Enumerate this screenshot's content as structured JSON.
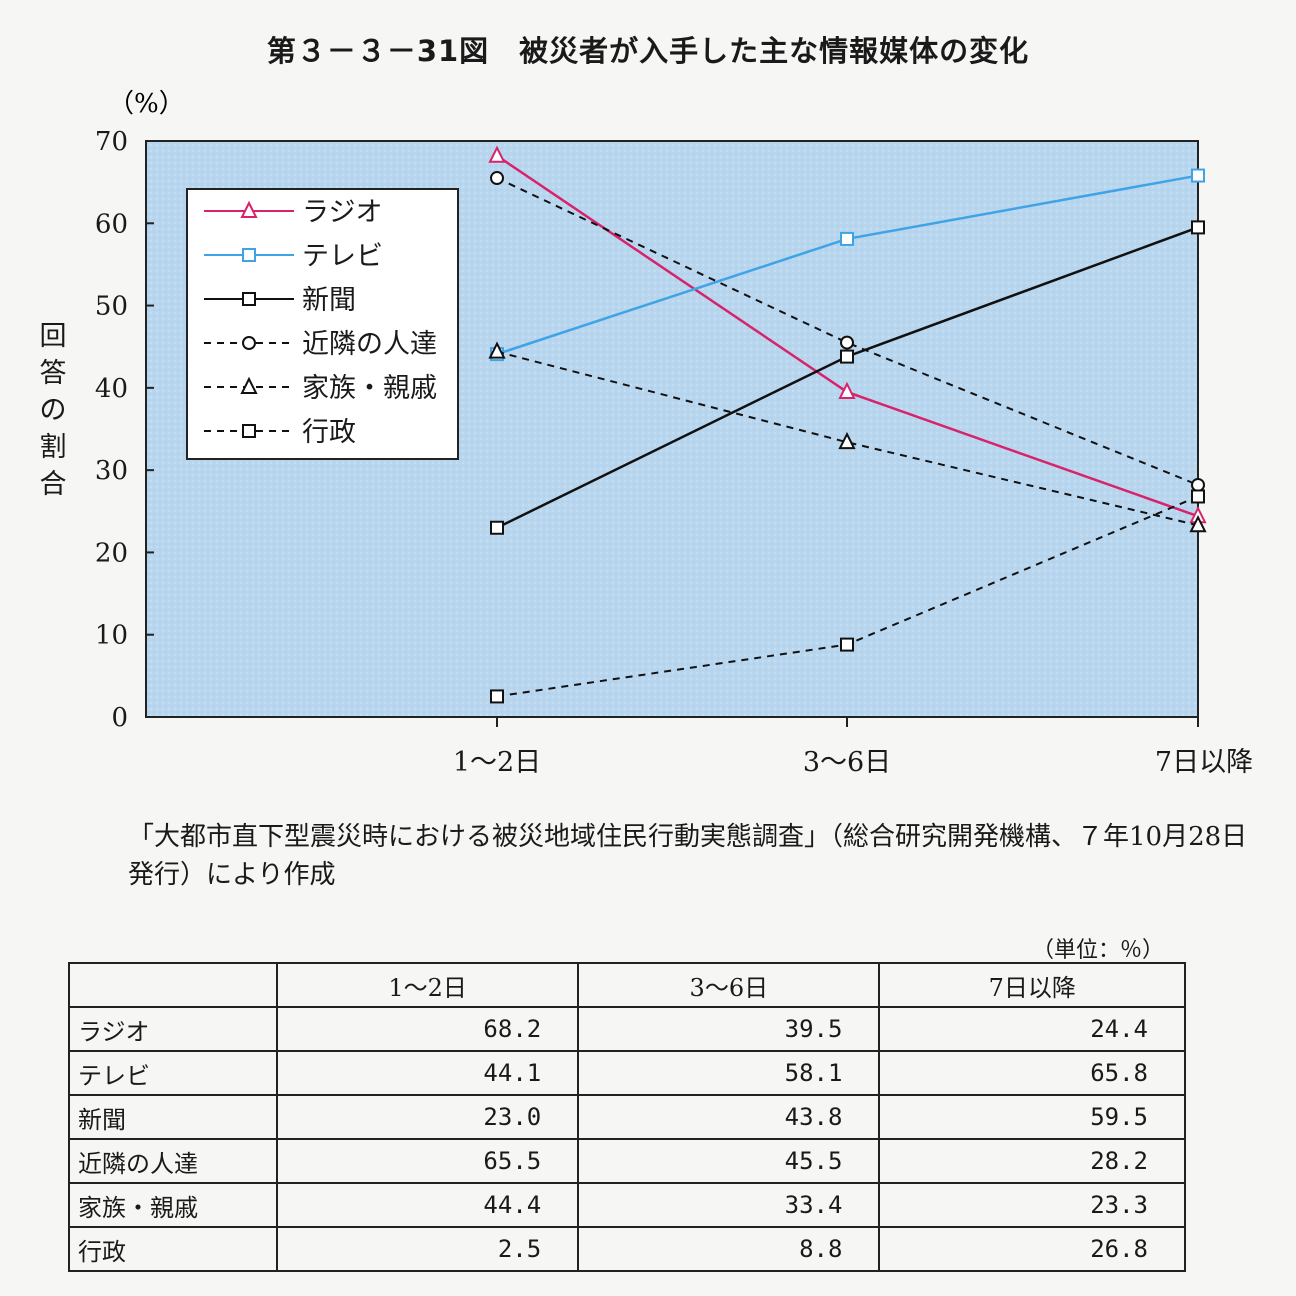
{
  "title": "第３－３－31図　被災者が入手した主な情報媒体の変化",
  "chart_data": {
    "type": "line",
    "yunit": "（%）",
    "ylabel": "回答の割合",
    "ylim": [
      0,
      70
    ],
    "yticks": [
      0,
      10,
      20,
      30,
      40,
      50,
      60,
      70
    ],
    "categories": [
      "1～2日",
      "3～6日",
      "7日以降"
    ],
    "legend_position": "top-left",
    "series": [
      {
        "name": "ラジオ",
        "values": [
          68.2,
          39.5,
          24.4
        ],
        "color": "#d8236b",
        "dash": false,
        "marker": "triangle"
      },
      {
        "name": "テレビ",
        "values": [
          44.1,
          58.1,
          65.8
        ],
        "color": "#3fa3e6",
        "dash": false,
        "marker": "square"
      },
      {
        "name": "新聞",
        "values": [
          23.0,
          43.8,
          59.5
        ],
        "color": "#111111",
        "dash": false,
        "marker": "square"
      },
      {
        "name": "近隣の人達",
        "values": [
          65.5,
          45.5,
          28.2
        ],
        "color": "#111111",
        "dash": true,
        "marker": "circle"
      },
      {
        "name": "家族・親戚",
        "values": [
          44.4,
          33.4,
          23.3
        ],
        "color": "#111111",
        "dash": true,
        "marker": "triangle"
      },
      {
        "name": "行政",
        "values": [
          2.5,
          8.8,
          26.8
        ],
        "color": "#111111",
        "dash": true,
        "marker": "square"
      }
    ],
    "plot_background": "#b8d6f0"
  },
  "source_note": "「大都市直下型震災時における被災地域住民行動実態調査」（総合研究開発機構、７年10月28日発行）により作成",
  "table": {
    "unit": "（単位：％）",
    "headers": [
      "1～2日",
      "3～6日",
      "7日以降"
    ],
    "rows": [
      {
        "label": "ラジオ",
        "values": [
          "68.2",
          "39.5",
          "24.4"
        ]
      },
      {
        "label": "テレビ",
        "values": [
          "44.1",
          "58.1",
          "65.8"
        ]
      },
      {
        "label": "新聞",
        "values": [
          "23.0",
          "43.8",
          "59.5"
        ]
      },
      {
        "label": "近隣の人達",
        "values": [
          "65.5",
          "45.5",
          "28.2"
        ]
      },
      {
        "label": "家族・親戚",
        "values": [
          "44.4",
          "33.4",
          "23.3"
        ]
      },
      {
        "label": "行政",
        "values": [
          "2.5",
          "8.8",
          "26.8"
        ]
      }
    ]
  }
}
